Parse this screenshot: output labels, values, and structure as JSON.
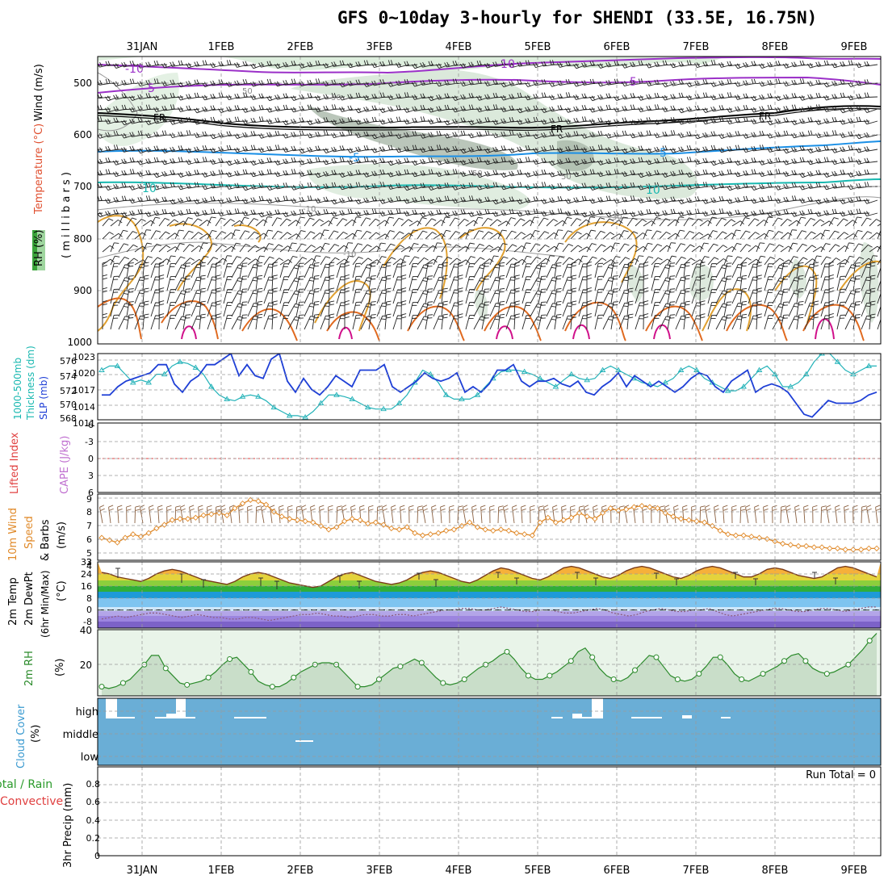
{
  "title": "GFS 0~10day 3-hourly for SHENDI (33.5E, 16.75N)",
  "date_labels": [
    "31JAN",
    "1FEB",
    "2FEB",
    "3FEB",
    "4FEB",
    "5FEB",
    "6FEB",
    "7FEB",
    "8FEB",
    "9FEB"
  ],
  "colors": {
    "frame": "#000000",
    "grid": "#999999",
    "slp": "#1e3fd6",
    "thickness": "#22b2b8",
    "lifted_index_zero": "#e04040",
    "wind10m": "#e08a2a",
    "temp_line": "#7a3b1a",
    "dewpt_line": "#8a5a7a",
    "rh_fill": "#cfe6cf",
    "rh_line": "#2a8a2a",
    "cloud": "#6aaed6",
    "cloud_cut": "#ffffff",
    "temp_purple": "#9b30c8",
    "temp_black": "#000000",
    "temp_blue": "#1a8fe6",
    "temp_cyan": "#18b8b0",
    "temp_orange": "#e0a030",
    "temp_dkorange": "#e06a20",
    "temp_magenta": "#d0108a"
  },
  "panels": {
    "upper": {
      "ylabel_parts": [
        "Wind (m/s)",
        "Temperature (°C)",
        "RH (%)",
        "( m i l l i b a r s )"
      ],
      "ticks": [
        "500",
        "600",
        "700",
        "800",
        "900",
        "1000"
      ],
      "contour_labels": [
        "-10",
        "-10",
        "-5",
        "-5",
        "FR",
        "FR",
        "FR",
        "-5",
        "-5",
        "10",
        "10",
        "50",
        "50",
        "50",
        "50",
        "-10",
        "-10",
        "30"
      ]
    },
    "slp": {
      "ylabel_a": "1000-500mb",
      "ylabel_b": "Thickness (dm)",
      "ylabel_c": "SLP (mb)",
      "left_ticks": [
        "576",
        "574",
        "572",
        "570",
        "568"
      ],
      "right_ticks": [
        "1023",
        "1020",
        "1017",
        "1014",
        "1011"
      ]
    },
    "cape": {
      "ylabel_a": "Lifted Index",
      "ylabel_b": "CAPE (J/kg)",
      "ticks": [
        "-6",
        "-3",
        "0",
        "3",
        "6"
      ]
    },
    "wind10": {
      "ylabel_a": "10m Wind",
      "ylabel_b": "Speed",
      "ylabel_c": "& Barbs",
      "ylabel_d": "(m/s)",
      "ticks": [
        "9",
        "8",
        "7",
        "6",
        "5",
        "4",
        "3"
      ]
    },
    "temp": {
      "ylabel_a": "2m Temp",
      "ylabel_b": "2m DewPt",
      "ylabel_c": "(6hr Min/Max)",
      "ylabel_d": "(°C)",
      "ticks": [
        "32",
        "24",
        "16",
        "8",
        "0",
        "-8"
      ]
    },
    "rh": {
      "ylabel_a": "2m RH",
      "ylabel_b": "(%)",
      "ticks": [
        "40",
        "20"
      ]
    },
    "cloud": {
      "ylabel_a": "Cloud Cover",
      "ylabel_b": "(%)",
      "levels": [
        "high",
        "middle",
        "low"
      ]
    },
    "precip": {
      "ylabel_a": "Total / Rain",
      "ylabel_b": "Convective",
      "ylabel_c": "3hr Precip (mm)",
      "ticks": [
        "0.8",
        "0.6",
        "0.4",
        "0.2",
        "0"
      ],
      "run_total": "Run Total = 0"
    }
  },
  "chart_data": [
    {
      "type": "line",
      "name": "upper-air cross section",
      "yaxis_label": "millibars",
      "ylim": [
        1000,
        450
      ],
      "y_ticks": [
        500,
        600,
        700,
        800,
        900,
        1000
      ],
      "x_dates": [
        "31JAN",
        "1FEB",
        "2FEB",
        "3FEB",
        "4FEB",
        "5FEB",
        "6FEB",
        "7FEB",
        "8FEB",
        "9FEB"
      ],
      "contour_levels_temperature": [
        -10,
        -5,
        0,
        5,
        10
      ],
      "rh_levels": [
        10,
        30,
        50
      ]
    },
    {
      "type": "line",
      "name": "SLP and 1000-500mb thickness",
      "series": [
        {
          "name": "SLP (mb)",
          "values": [
            1015.5,
            1015.5,
            1017,
            1018,
            1018.5,
            1019,
            1019.5,
            1021,
            1021,
            1017.5,
            1016,
            1018,
            1019,
            1021,
            1021,
            1022,
            1023,
            1019,
            1021,
            1019,
            1018.5,
            1022,
            1023,
            1018,
            1016,
            1018.5,
            1016.5,
            1015.5,
            1017,
            1019,
            1018,
            1017,
            1020,
            1020,
            1020,
            1021,
            1017,
            1016,
            1017,
            1018,
            1019.5,
            1018.5,
            1018,
            1018.5,
            1019.5,
            1016,
            1017,
            1016,
            1017.5,
            1020,
            1020,
            1021,
            1018,
            1017,
            1018,
            1018,
            1018.5,
            1017.5,
            1017,
            1018,
            1016,
            1015.5,
            1017,
            1018,
            1019.5,
            1017,
            1019,
            1018,
            1017,
            1018,
            1017,
            1016,
            1017,
            1018.5,
            1019.5,
            1019,
            1017,
            1016,
            1018,
            1019,
            1020,
            1016,
            1017,
            1017.5,
            1017,
            1016,
            1014,
            1012,
            1011.5,
            1013,
            1014.5,
            1014,
            1014,
            1014,
            1014.5,
            1015.5,
            1016
          ]
        },
        {
          "name": "1000-500mb Thickness (dm)",
          "values": [
            574,
            574.5,
            574.5,
            573.5,
            572.5,
            572.8,
            572.5,
            573.5,
            573.5,
            574.5,
            575,
            574.8,
            574.3,
            573.5,
            572,
            571,
            570.5,
            570.3,
            570.8,
            571,
            570.8,
            570.3,
            569.5,
            569,
            568.5,
            568.5,
            568.3,
            569,
            570,
            571,
            571,
            570.8,
            570.5,
            570,
            569.5,
            569.3,
            569.3,
            569.3,
            570,
            571,
            572.5,
            574,
            573.5,
            572.5,
            571,
            570.5,
            570.5,
            570.5,
            571,
            572,
            573,
            573.8,
            574,
            574,
            573.8,
            573.5,
            573,
            572.5,
            572,
            572.8,
            573.5,
            573,
            572.8,
            573,
            574,
            574.5,
            574,
            573.5,
            573,
            572.5,
            572.3,
            572,
            572.5,
            573,
            574,
            574.5,
            574,
            573,
            572.5,
            572,
            571.5,
            571.5,
            572,
            573,
            574,
            574.5,
            573.5,
            572,
            572,
            572.5,
            573.5,
            575,
            576,
            576,
            575,
            574,
            573.5,
            574,
            574.5,
            574.5
          ]
        }
      ],
      "left_ylim": [
        568,
        576
      ],
      "right_ylim": [
        1011,
        1023
      ]
    },
    {
      "type": "line",
      "name": "10m wind speed",
      "ylim": [
        3,
        9
      ],
      "values": [
        5.5,
        5.3,
        5.1,
        5.5,
        5.8,
        5.6,
        5.9,
        6.3,
        6.6,
        7,
        7.1,
        7.1,
        7.2,
        7.4,
        7.5,
        7.6,
        7.4,
        8,
        8.4,
        8.7,
        8.6,
        8.3,
        7.7,
        7.3,
        7.1,
        7,
        6.9,
        6.8,
        6.5,
        6.2,
        6.4,
        6.9,
        7.1,
        7,
        6.7,
        6.8,
        6.6,
        6.3,
        6.2,
        6.4,
        5.9,
        5.7,
        5.8,
        5.9,
        6.1,
        6.2,
        6.5,
        6.8,
        6.4,
        6.2,
        6.1,
        6.2,
        6.1,
        5.9,
        5.8,
        5.7,
        6.8,
        7.2,
        6.8,
        7,
        7.2,
        7.6,
        7.3,
        7.1,
        7.6,
        8,
        7.8,
        7.9,
        8.1,
        8.2,
        8.1,
        8,
        7.6,
        7.3,
        7.1,
        7,
        6.9,
        6.8,
        6.5,
        6.1,
        5.8,
        5.7,
        5.7,
        5.6,
        5.5,
        5.4,
        5.2,
        5,
        4.9,
        4.8,
        4.8,
        4.7,
        4.7,
        4.6,
        4.6,
        4.5,
        4.5,
        4.5,
        4.6,
        4.6
      ]
    },
    {
      "type": "area",
      "name": "2m temperature",
      "ylim": [
        -12,
        32
      ],
      "values": [
        25,
        24,
        22,
        21,
        20,
        19,
        21,
        24,
        26,
        27,
        26,
        24,
        22,
        20,
        19,
        18,
        17,
        19,
        22,
        24,
        25,
        24,
        22,
        20,
        18,
        17,
        16,
        15,
        16,
        19,
        22,
        24,
        25,
        23,
        21,
        19,
        18,
        17,
        18,
        20,
        23,
        25,
        26,
        25,
        23,
        21,
        19,
        18,
        20,
        23,
        26,
        28,
        27,
        25,
        23,
        21,
        20,
        22,
        25,
        28,
        29,
        28,
        26,
        24,
        22,
        21,
        23,
        26,
        28,
        29,
        28,
        26,
        24,
        22,
        21,
        23,
        26,
        28,
        29,
        28,
        26,
        24,
        22,
        22,
        24,
        27,
        28,
        27,
        25,
        23,
        22,
        21,
        22,
        25,
        28,
        29,
        28,
        26,
        24,
        22
      ]
    },
    {
      "type": "line",
      "name": "2m dew point",
      "values": [
        -6,
        -5,
        -4,
        -5,
        -4,
        -3,
        -2,
        -2,
        -3,
        -4,
        -5,
        -4,
        -3,
        -4,
        -5,
        -5,
        -6,
        -6,
        -5,
        -5,
        -6,
        -7,
        -6,
        -5,
        -4,
        -3,
        -3,
        -2,
        -3,
        -4,
        -4,
        -5,
        -4,
        -3,
        -3,
        -4,
        -4,
        -3,
        -3,
        -4,
        -3,
        -2,
        -1,
        0,
        0,
        1,
        1,
        0,
        0,
        1,
        2,
        1,
        0,
        -1,
        -1,
        0,
        0,
        -1,
        -2,
        -2,
        -1,
        0,
        1,
        0,
        -2,
        -3,
        -4,
        -3,
        -1,
        0,
        1,
        0,
        -1,
        -1,
        0,
        0,
        1,
        -1,
        -3,
        -4,
        -3,
        -2,
        -1,
        0,
        1,
        1,
        0,
        -1,
        -1,
        0,
        1,
        1,
        0,
        -1,
        0,
        1,
        2,
        2
      ]
    },
    {
      "type": "area",
      "name": "2m RH",
      "ylim": [
        5,
        40
      ],
      "values": [
        10,
        9,
        10,
        12,
        14,
        18,
        22,
        27,
        27,
        20,
        16,
        12,
        11,
        12,
        13,
        15,
        18,
        22,
        25,
        26,
        22,
        18,
        13,
        11,
        10,
        10,
        12,
        15,
        18,
        20,
        22,
        23,
        23,
        22,
        18,
        14,
        10,
        10,
        11,
        14,
        17,
        20,
        21,
        23,
        25,
        23,
        19,
        15,
        12,
        11,
        12,
        14,
        17,
        20,
        22,
        24,
        27,
        29,
        25,
        20,
        16,
        14,
        14,
        16,
        18,
        21,
        24,
        29,
        31,
        26,
        20,
        16,
        14,
        13,
        15,
        19,
        23,
        27,
        26,
        21,
        16,
        14,
        13,
        14,
        17,
        21,
        26,
        26,
        22,
        17,
        14,
        13,
        15,
        17,
        19,
        21,
        24,
        27,
        28,
        24,
        20,
        18,
        17,
        18,
        20,
        22,
        26,
        30,
        35,
        39
      ]
    },
    {
      "type": "bar",
      "name": "3hr precip",
      "ylim": [
        0,
        1
      ],
      "values": [],
      "run_total": 0
    }
  ]
}
